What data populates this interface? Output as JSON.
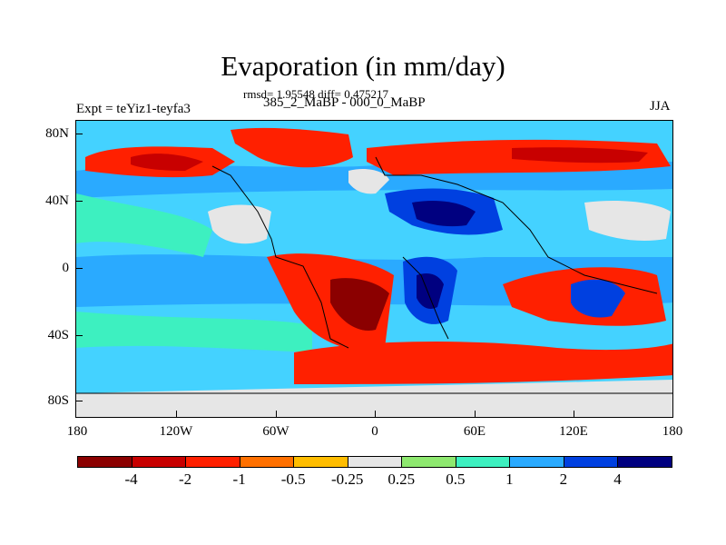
{
  "title": "Evaporation (in mm/day)",
  "stats_text": "rmsd= 1.95548 diff= 0.475217",
  "left_label": "Expt = teYiz1-teyfa3",
  "center_label": "385_2_MaBP - 000_0_MaBP",
  "right_label": "JJA",
  "lat_labels": [
    "80N",
    "40N",
    "0",
    "40S",
    "80S"
  ],
  "lon_labels": [
    "180",
    "120W",
    "60W",
    "0",
    "60E",
    "120E",
    "180"
  ],
  "colorbar": {
    "labels": [
      "-4",
      "-2",
      "-1",
      "-0.5",
      "-0.25",
      "0.25",
      "0.5",
      "1",
      "2",
      "4"
    ],
    "colors": [
      "#8b0000",
      "#c80000",
      "#ff2000",
      "#ff7000",
      "#ffbd00",
      "#e6e6e6",
      "#8ee86f",
      "#3df0c0",
      "#2aaaff",
      "#0040e0",
      "#000080"
    ]
  }
}
